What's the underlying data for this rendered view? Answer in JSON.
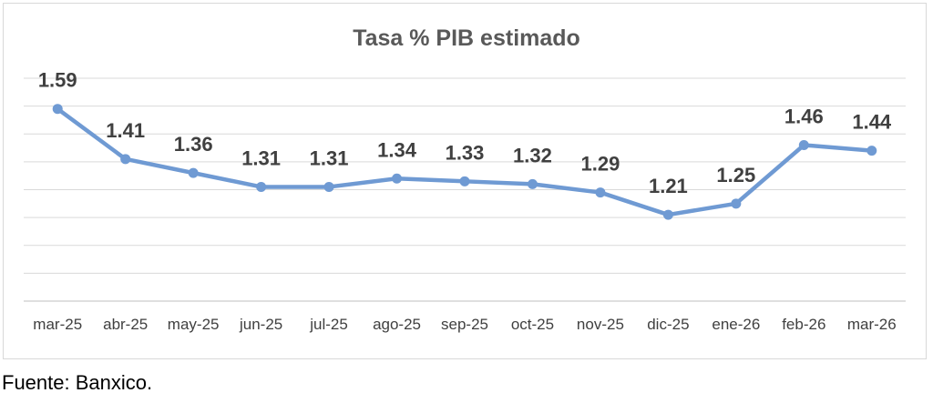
{
  "chart_data": {
    "type": "line",
    "title": "Tasa % PIB estimado",
    "xlabel": "",
    "ylabel": "",
    "categories": [
      "mar-25",
      "abr-25",
      "may-25",
      "jun-25",
      "jul-25",
      "ago-25",
      "sep-25",
      "oct-25",
      "nov-25",
      "dic-25",
      "ene-26",
      "feb-26",
      "mar-26"
    ],
    "series": [
      {
        "name": "Tasa % PIB estimado",
        "values": [
          1.59,
          1.41,
          1.36,
          1.31,
          1.31,
          1.34,
          1.33,
          1.32,
          1.29,
          1.21,
          1.25,
          1.46,
          1.44
        ]
      }
    ],
    "data_labels": [
      "1.59",
      "1.41",
      "1.36",
      "1.31",
      "1.31",
      "1.34",
      "1.33",
      "1.32",
      "1.29",
      "1.21",
      "1.25",
      "1.46",
      "1.44"
    ],
    "ylim": [
      0.9,
      1.7
    ],
    "ytick_step": 0.1,
    "y_axis_labels_shown": false,
    "grid": true,
    "legend": "none",
    "line_color": "#6f9ad3"
  },
  "source": "Fuente: Banxico."
}
